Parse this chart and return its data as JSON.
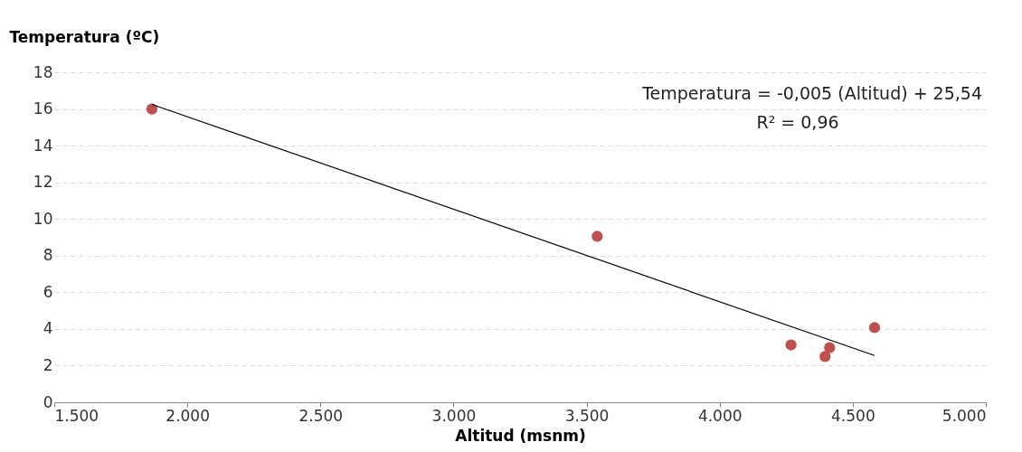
{
  "chart_data": {
    "type": "scatter",
    "xlabel": "Altitud (msnm)",
    "ylabel": "Temperatura (ºC)",
    "xlim": [
      1500,
      5000
    ],
    "xticks": [
      {
        "value": 1500,
        "label": "1.500"
      },
      {
        "value": 2000,
        "label": "2.000"
      },
      {
        "value": 2500,
        "label": "2.500"
      },
      {
        "value": 3000,
        "label": "3.000"
      },
      {
        "value": 3500,
        "label": "3.500"
      },
      {
        "value": 4000,
        "label": "4.000"
      },
      {
        "value": 4500,
        "label": "4.500"
      },
      {
        "value": 5000,
        "label": "5.000"
      }
    ],
    "ylim": [
      0,
      18
    ],
    "yticks": [
      0,
      2,
      4,
      6,
      8,
      10,
      12,
      14,
      16,
      18
    ],
    "grid": "y",
    "series": [
      {
        "marker": "circle",
        "color": "#c0504d",
        "x": [
          1867,
          3540,
          4268,
          4396,
          4413,
          4582
        ],
        "values": [
          16.0,
          9.05,
          3.13,
          2.5,
          2.98,
          4.07
        ]
      },
      {
        "type": "line",
        "marker": "none",
        "color": "#000000",
        "line_style": "solid",
        "x": [
          1867,
          4582
        ],
        "values": [
          16.25,
          2.55
        ]
      }
    ],
    "annotations": [
      "Temperatura = -0,005 (Altitud) + 25,54",
      "R² = 0,96"
    ]
  }
}
